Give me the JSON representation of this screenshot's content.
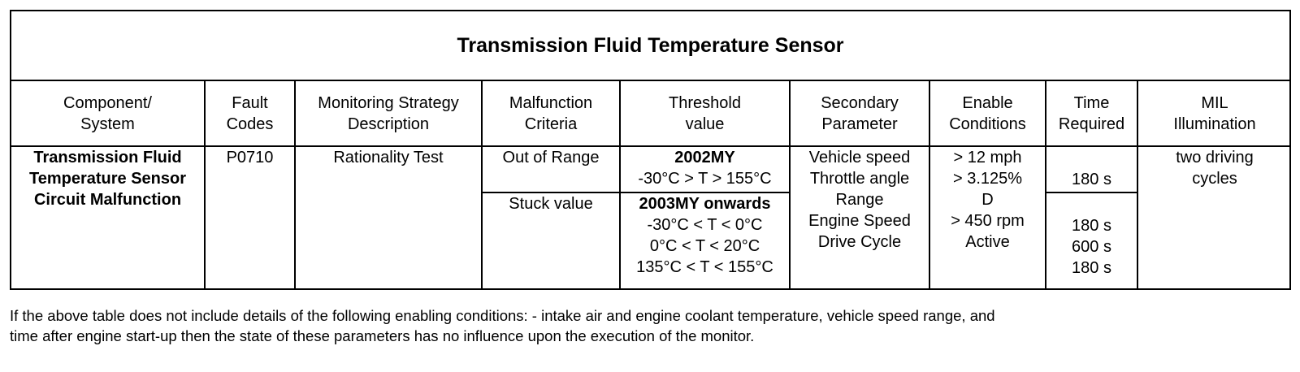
{
  "table": {
    "title": "Transmission Fluid Temperature Sensor",
    "headers": {
      "component": [
        "Component/",
        "System"
      ],
      "fault": [
        "Fault",
        "Codes"
      ],
      "strategy": [
        "Monitoring Strategy",
        "Description"
      ],
      "malfunction": [
        "Malfunction",
        "Criteria"
      ],
      "threshold": [
        "Threshold",
        "value"
      ],
      "secondary": [
        "Secondary",
        "Parameter"
      ],
      "enable": [
        "Enable",
        "Conditions"
      ],
      "time": [
        "Time",
        "Required"
      ],
      "mil": [
        "MIL",
        "Illumination"
      ]
    },
    "row": {
      "component": [
        "Transmission Fluid",
        "Temperature Sensor",
        "Circuit Malfunction"
      ],
      "fault_code": "P0710",
      "strategy": "Rationality Test",
      "malfunction": [
        "Out of Range",
        "Stuck value"
      ],
      "threshold_a": {
        "heading": "2002MY",
        "lines": [
          "-30°C > T > 155°C"
        ]
      },
      "threshold_b": {
        "heading": "2003MY onwards",
        "lines": [
          "-30°C < T < 0°C",
          "0°C < T < 20°C",
          "135°C < T < 155°C"
        ]
      },
      "secondary": [
        "Vehicle speed",
        "Throttle angle",
        "Range",
        "Engine Speed",
        "Drive Cycle"
      ],
      "enable": [
        "> 12 mph",
        "> 3.125%",
        "D",
        "> 450 rpm",
        "Active"
      ],
      "time_a": "180 s",
      "time_b": [
        "180 s",
        "600 s",
        "180 s"
      ],
      "mil": [
        "two driving",
        "cycles"
      ]
    }
  },
  "footnote": [
    "If the above table does not include details of the following enabling conditions: - intake air and engine coolant temperature, vehicle speed range, and",
    "time after engine start-up then the state of these parameters has no influence upon the execution of the monitor."
  ]
}
